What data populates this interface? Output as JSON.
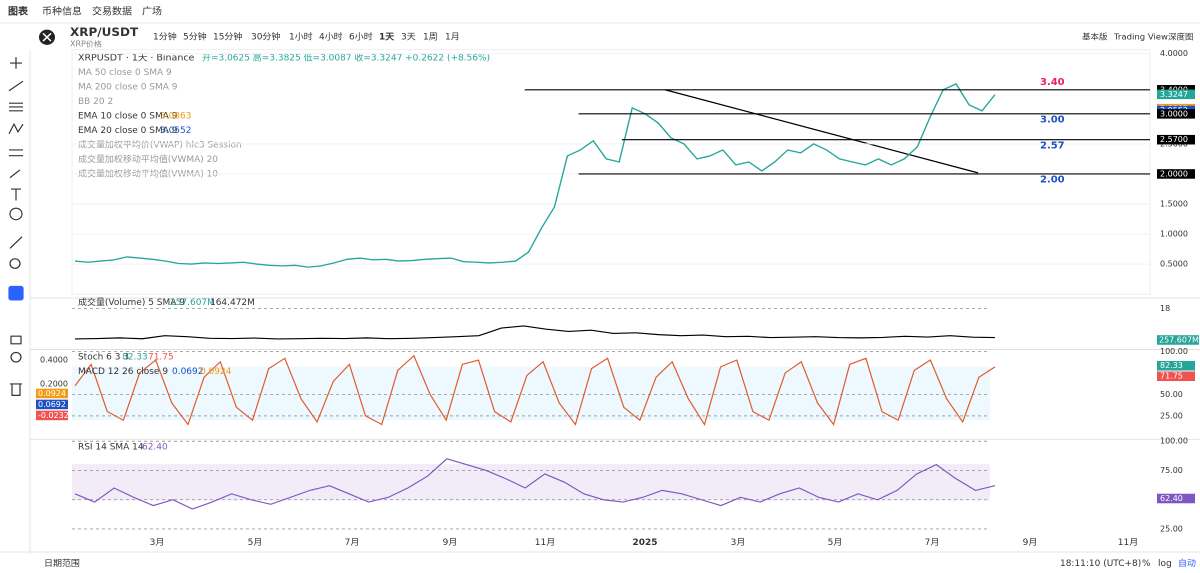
{
  "nav": {
    "tabs": [
      "图表",
      "币种信息",
      "交易数据",
      "广场"
    ]
  },
  "symbol": {
    "pair": "XRP/USDT",
    "name": "XRP价格"
  },
  "toolbar": {
    "intervals": [
      "1分钟",
      "5分钟",
      "15分钟",
      "30分钟",
      "1小时",
      "4小时",
      "6小时",
      "1天",
      "3天",
      "1周",
      "1月"
    ],
    "right": [
      "基本版",
      "Trading View",
      "深度图"
    ]
  },
  "legend": {
    "title": "XRPUSDT · 1天 · Binance",
    "ohlc": "开=3.0625 高=3.3825 低=3.0087 收=3.3247 +0.2622 (+8.56%)",
    "indicators": [
      {
        "name": "MA 50 close 0 SMA 9"
      },
      {
        "name": "MA 200 close 0 SMA 9"
      },
      {
        "name": "BB 20 2"
      },
      {
        "name": "EMA 10 close 0 SMA 9",
        "value": "3.0863",
        "color": "#f39c12"
      },
      {
        "name": "EMA 20 close 0 SMA 9",
        "value": "3.0552",
        "color": "#1e50c8"
      },
      {
        "name": "成交量加权平均价(VWAP) hlc3 Session"
      },
      {
        "name": "成交量加权移动平均值(VWMA) 20"
      },
      {
        "name": "成交量加权移动平均值(VWMA) 10"
      }
    ]
  },
  "price_chart": {
    "type": "line",
    "ylim": [
      0,
      4.1
    ],
    "yticks": [
      {
        "value": 0.5,
        "label": "0.5000"
      },
      {
        "value": 1,
        "label": "1.0000"
      },
      {
        "value": 1.5,
        "label": "1.5000"
      },
      {
        "value": 2,
        "label": "2.0000"
      },
      {
        "value": 2.5,
        "label": "2.5000"
      },
      {
        "value": 4,
        "label": "4.0000"
      }
    ],
    "closes": [
      0.55,
      0.53,
      0.55,
      0.57,
      0.62,
      0.6,
      0.58,
      0.55,
      0.51,
      0.5,
      0.52,
      0.51,
      0.52,
      0.53,
      0.5,
      0.48,
      0.47,
      0.48,
      0.45,
      0.47,
      0.52,
      0.58,
      0.6,
      0.57,
      0.58,
      0.55,
      0.56,
      0.58,
      0.59,
      0.6,
      0.54,
      0.53,
      0.52,
      0.53,
      0.55,
      0.7,
      1.1,
      1.45,
      2.3,
      2.4,
      2.55,
      2.25,
      2.2,
      3.1,
      3.0,
      2.85,
      2.6,
      2.5,
      2.25,
      2.3,
      2.4,
      2.15,
      2.2,
      2.05,
      2.2,
      2.4,
      2.35,
      2.5,
      2.4,
      2.25,
      2.2,
      2.15,
      2.25,
      2.15,
      2.25,
      2.45,
      2.95,
      3.4,
      3.5,
      3.15,
      3.05,
      3.32
    ],
    "color": "#26a69a",
    "levels": [
      {
        "value": 3.4,
        "label": "3.40",
        "color": "#e91e63",
        "from": 0.42
      },
      {
        "value": 3.0,
        "label": "3.00",
        "color": "#1e50c8",
        "from": 0.47
      },
      {
        "value": 2.57,
        "label": "2.57",
        "color": "#1e50c8",
        "from": 0.51
      },
      {
        "value": 2.0,
        "label": "2.00",
        "color": "#1e50c8",
        "from": 0.47
      }
    ],
    "price_tags": [
      {
        "value": 3.4,
        "label": "3.4000",
        "color": "#000000"
      },
      {
        "value": 3.3247,
        "label": "3.3247",
        "color": "#26a69a"
      },
      {
        "value": 3.0863,
        "label": "3.0863",
        "color": "#f39c12"
      },
      {
        "value": 3.0552,
        "label": "3.0552",
        "color": "#1e50c8"
      },
      {
        "value": 3.0,
        "label": "3.0000",
        "color": "#000000"
      },
      {
        "value": 2.57,
        "label": "2.5700",
        "color": "#000000"
      },
      {
        "value": 2.0,
        "label": "2.0000",
        "color": "#000000"
      }
    ],
    "x_labels": [
      "3月",
      "5月",
      "7月",
      "9月",
      "11月",
      "2025",
      "3月",
      "5月",
      "7月",
      "9月",
      "11月"
    ]
  },
  "volume": {
    "legend": "成交量(Volume) 5 SMA 9",
    "value1": "257.607M",
    "value2": "164.472M",
    "tag": "257.607M",
    "ylim": [
      0,
      22
    ],
    "yticks": [
      18
    ],
    "sma": [
      4,
      4.2,
      4.5,
      4.1,
      5.5,
      5,
      4.3,
      4.2,
      4.4,
      4,
      4.1,
      4.3,
      4.2,
      4.5,
      4.1,
      4.3,
      4.6,
      5,
      5.5,
      9,
      10,
      8.5,
      7.5,
      8,
      6.5,
      6.8,
      6,
      5.5,
      5.8,
      5,
      5.2,
      4.6,
      4.8,
      5,
      4.6,
      4.5,
      4.7,
      5.2,
      4.9,
      5.5,
      4.8,
      4.6
    ]
  },
  "stoch": {
    "legend": "Stoch 6 3 3",
    "k": "82.33",
    "d": "71.75",
    "ylim": [
      0,
      100
    ],
    "yticks": [
      {
        "value": 25,
        "label": "25.00"
      },
      {
        "value": 50,
        "label": "50.00"
      },
      {
        "value": 100,
        "label": "100.00"
      }
    ],
    "values": [
      60,
      85,
      30,
      20,
      75,
      90,
      40,
      15,
      70,
      88,
      35,
      20,
      80,
      92,
      45,
      18,
      65,
      85,
      25,
      15,
      78,
      95,
      50,
      20,
      85,
      90,
      30,
      18,
      72,
      88,
      40,
      15,
      80,
      92,
      35,
      20,
      70,
      88,
      45,
      15,
      82,
      90,
      30,
      20,
      75,
      88,
      40,
      15,
      85,
      92,
      30,
      20,
      78,
      90,
      45,
      18,
      70,
      82
    ]
  },
  "macd": {
    "legend": "MACD 12 26 close 9",
    "v1": "0.0692",
    "v2": "0.0924",
    "ticks": [
      "0.4000",
      "0.2000"
    ],
    "tags": [
      {
        "label": "0.0924",
        "color": "#f39c12"
      },
      {
        "label": "0.0692",
        "color": "#1e50c8"
      },
      {
        "label": "-0.0232",
        "color": "#ef5350"
      }
    ]
  },
  "rsi": {
    "legend": "RSI 14 SMA 14",
    "value": "62.40",
    "tag": "62.40",
    "ylim": [
      20,
      100
    ],
    "yticks": [
      {
        "value": 25,
        "label": "25.00"
      },
      {
        "value": 50,
        "label": "50.00"
      },
      {
        "value": 75,
        "label": "75.00"
      },
      {
        "value": 100,
        "label": "100.00"
      }
    ],
    "values": [
      55,
      48,
      60,
      52,
      45,
      50,
      42,
      48,
      55,
      50,
      46,
      52,
      58,
      62,
      55,
      48,
      52,
      60,
      70,
      85,
      80,
      75,
      68,
      60,
      72,
      65,
      55,
      50,
      48,
      52,
      58,
      55,
      50,
      45,
      52,
      48,
      55,
      60,
      52,
      48,
      55,
      50,
      58,
      72,
      80,
      68,
      58,
      62
    ]
  },
  "footer": {
    "range": "日期范围",
    "time": "18:11:10 (UTC+8)",
    "pct": "%",
    "log": "log",
    "auto": "自动"
  }
}
